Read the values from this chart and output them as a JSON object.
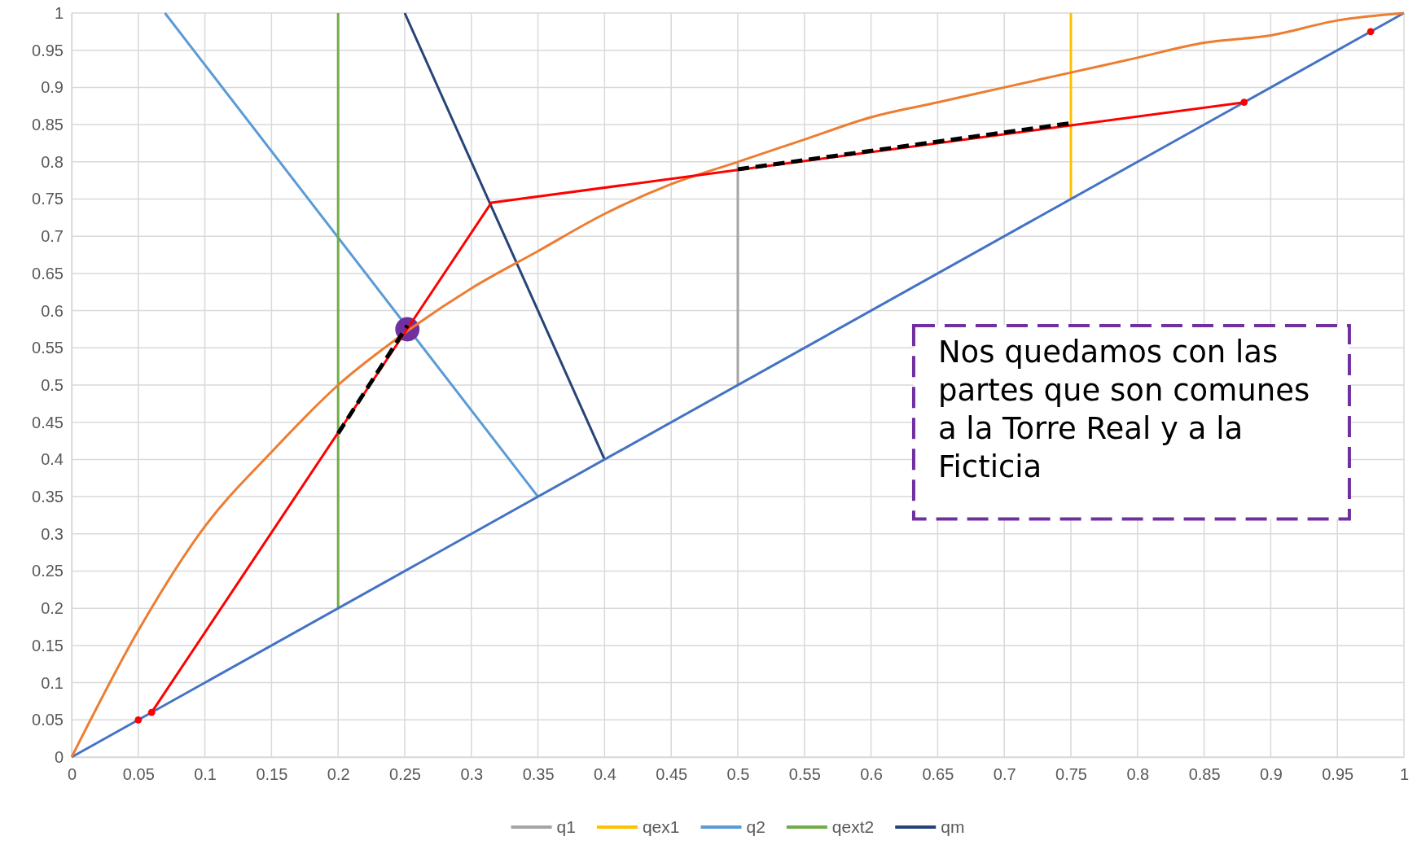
{
  "chart_data": {
    "type": "line",
    "xlim": [
      0,
      1
    ],
    "ylim": [
      0,
      1
    ],
    "xticks": [
      0,
      0.05,
      0.1,
      0.15,
      0.2,
      0.25,
      0.3,
      0.35,
      0.4,
      0.45,
      0.5,
      0.55,
      0.6,
      0.65,
      0.7,
      0.75,
      0.8,
      0.85,
      0.9,
      0.95,
      1
    ],
    "yticks": [
      0,
      0.05,
      0.1,
      0.15,
      0.2,
      0.25,
      0.3,
      0.35,
      0.4,
      0.45,
      0.5,
      0.55,
      0.6,
      0.65,
      0.7,
      0.75,
      0.8,
      0.85,
      0.9,
      0.95,
      1
    ],
    "grid": true,
    "legend": "bottom",
    "marker": "none",
    "line_style": "solid",
    "annotations": [
      "Nos quedamos con las partes que son comunes a la Torre Real y a la Ficticia"
    ],
    "series": [
      {
        "name": "q1",
        "color": "#a5a5a5",
        "x": [
          0.5,
          0.5
        ],
        "values": [
          0.5,
          0.8
        ]
      },
      {
        "name": "qex1",
        "color": "#ffc000",
        "x": [
          0.75,
          0.75
        ],
        "values": [
          0.75,
          1
        ]
      },
      {
        "name": "q2",
        "color": "#5b9bd5",
        "x": [
          0.35,
          0.07
        ],
        "values": [
          0.35,
          1
        ]
      },
      {
        "name": "qext2",
        "color": "#70ad47",
        "x": [
          0.2,
          0.2
        ],
        "values": [
          0.2,
          1
        ]
      },
      {
        "name": "qm",
        "color": "#264478",
        "x": [
          0.4,
          0.25
        ],
        "values": [
          0.4,
          1
        ]
      },
      {
        "type": "scatter",
        "marker": "circle",
        "color": "#7030a0",
        "x": [
          0.252
        ],
        "values": [
          0.575
        ]
      },
      {
        "color": "#4472c4",
        "x": [
          0,
          1
        ],
        "values": [
          0,
          1
        ]
      },
      {
        "color": "#ed7d31",
        "x": [
          0,
          0.05,
          0.1,
          0.15,
          0.2,
          0.25,
          0.3,
          0.35,
          0.4,
          0.45,
          0.5,
          0.55,
          0.6,
          0.65,
          0.7,
          0.75,
          0.8,
          0.85,
          0.9,
          0.95,
          1
        ],
        "values": [
          0,
          0.17,
          0.31,
          0.41,
          0.5,
          0.57,
          0.63,
          0.68,
          0.73,
          0.77,
          0.8,
          0.83,
          0.86,
          0.88,
          0.9,
          0.92,
          0.94,
          0.96,
          0.97,
          0.99,
          1
        ]
      },
      {
        "color": "#ff0000",
        "x": [
          0.06,
          0.315,
          0.88
        ],
        "values": [
          0.06,
          0.745,
          0.88
        ]
      },
      {
        "type": "scatter",
        "marker": "circle",
        "color": "#ff0000",
        "x": [
          0.05,
          0.06,
          0.88,
          0.975
        ],
        "values": [
          0.05,
          0.06,
          0.88,
          0.975
        ]
      },
      {
        "color": "#000000",
        "line_style": "dashed",
        "x": [
          0.2,
          0.252,
          0.4,
          0.5,
          0.75
        ],
        "values": [
          0.435,
          0.58,
          null,
          0.79,
          0.852
        ]
      }
    ]
  }
}
